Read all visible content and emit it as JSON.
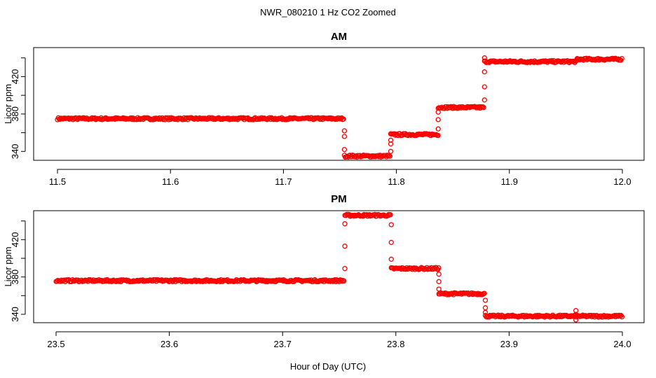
{
  "figure": {
    "title": "NWR_080210  1 Hz CO2 Zoomed",
    "xlabel": "Hour of Day (UTC)"
  },
  "chart_data": [
    {
      "type": "scatter",
      "title": "AM",
      "ylabel": "Licor ppm",
      "xlabel": "",
      "xlim": [
        11.5,
        12.0
      ],
      "ylim": [
        330.5,
        451
      ],
      "xticks": [
        11.5,
        11.6,
        11.7,
        11.8,
        11.9,
        12.0
      ],
      "xtick_labels": [
        "11.5",
        "11.6",
        "11.7",
        "11.8",
        "11.9",
        "12.0"
      ],
      "yticks": [
        340,
        360,
        380,
        400,
        420,
        440
      ],
      "ytick_labels": [
        "340",
        "",
        "380",
        "",
        "420",
        ""
      ],
      "marker_color": "#ff0000",
      "series": [
        {
          "levels": [
            {
              "x0": 11.5,
              "x1": 11.754,
              "y": 375
            },
            {
              "x0": 11.754,
              "x1": 11.795,
              "y": 335
            },
            {
              "x0": 11.795,
              "x1": 11.837,
              "y": 358
            },
            {
              "x0": 11.837,
              "x1": 11.878,
              "y": 387
            },
            {
              "x0": 11.878,
              "x1": 11.96,
              "y": 436
            },
            {
              "x0": 11.96,
              "x1": 12.0,
              "y": 438.5
            }
          ],
          "transitions": [
            {
              "x": 11.754,
              "y": [
                362,
                356,
                342
              ]
            },
            {
              "x": 11.795,
              "y": [
                340,
                348,
                352
              ]
            },
            {
              "x": 11.837,
              "y": [
                364,
                374,
                382
              ]
            },
            {
              "x": 11.878,
              "y": [
                395,
                409,
                425,
                440
              ]
            }
          ],
          "outliers": []
        }
      ]
    },
    {
      "type": "scatter",
      "title": "PM",
      "ylabel": "Licor ppm",
      "xlabel": "",
      "xlim": [
        23.5,
        24.0
      ],
      "ylim": [
        331,
        451
      ],
      "xticks": [
        23.5,
        23.6,
        23.7,
        23.8,
        23.9,
        24.0
      ],
      "xtick_labels": [
        "23.5",
        "23.6",
        "23.7",
        "23.8",
        "23.9",
        "24.0"
      ],
      "yticks": [
        340,
        360,
        380,
        400,
        420,
        440
      ],
      "ytick_labels": [
        "340",
        "",
        "380",
        "",
        "420",
        ""
      ],
      "marker_color": "#ff0000",
      "series": [
        {
          "levels": [
            {
              "x0": 23.5,
              "x1": 23.755,
              "y": 376
            },
            {
              "x0": 23.755,
              "x1": 23.796,
              "y": 446
            },
            {
              "x0": 23.796,
              "x1": 23.838,
              "y": 389
            },
            {
              "x0": 23.838,
              "x1": 23.879,
              "y": 362
            },
            {
              "x0": 23.879,
              "x1": 24.0,
              "y": 338
            }
          ],
          "transitions": [
            {
              "x": 23.755,
              "y": [
                389,
                413,
                437
              ]
            },
            {
              "x": 23.796,
              "y": [
                436,
                417,
                399
              ]
            },
            {
              "x": 23.838,
              "y": [
                383,
                375,
                367
              ]
            },
            {
              "x": 23.879,
              "y": [
                355,
                347,
                342
              ]
            }
          ],
          "outliers": [
            {
              "x": 23.959,
              "y": 344
            },
            {
              "x": 23.959,
              "y": 340
            },
            {
              "x": 23.959,
              "y": 334
            }
          ]
        }
      ]
    }
  ]
}
